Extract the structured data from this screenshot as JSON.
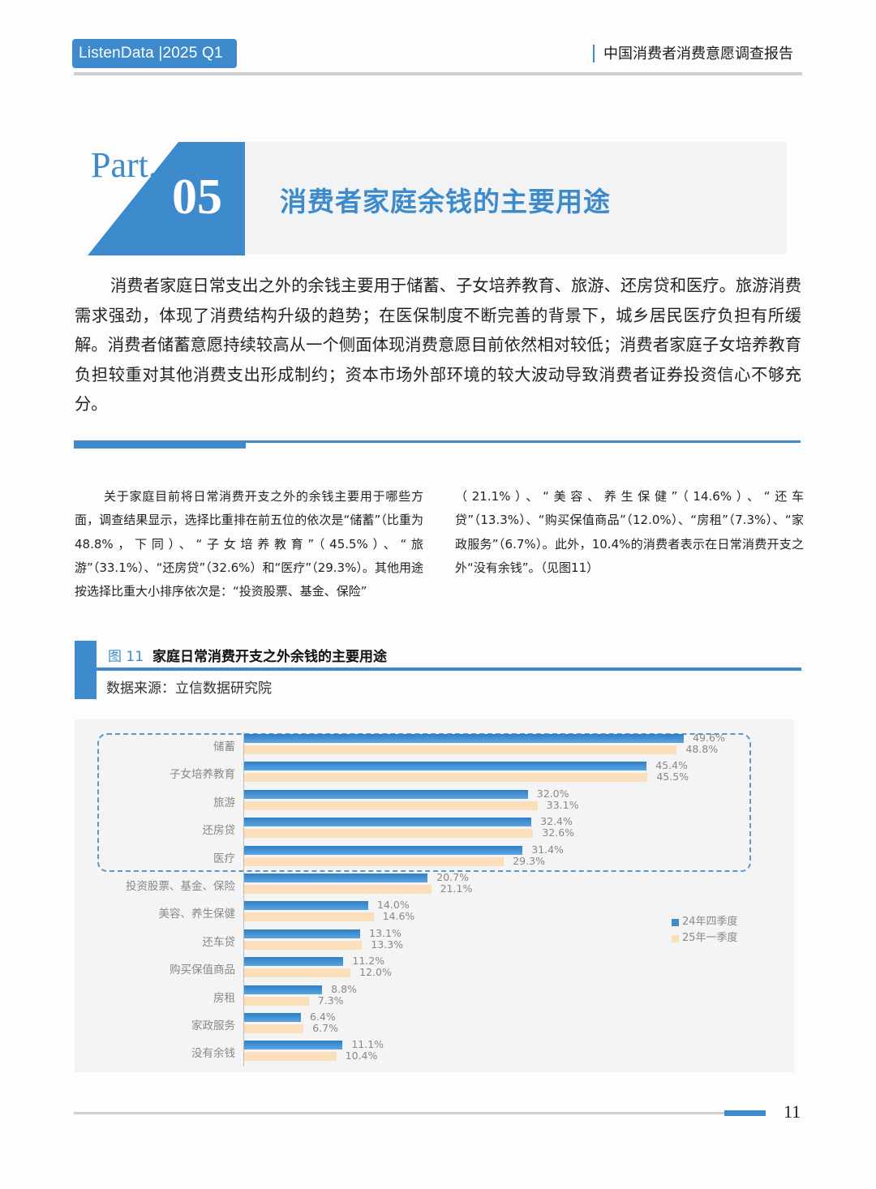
{
  "header": {
    "brand": "ListenData |2025 Q1",
    "report_title": "中国消费者消费意愿调查报告"
  },
  "section": {
    "part_label": "Part.",
    "part_number": "05",
    "title": "消费者家庭余钱的主要用途"
  },
  "intro": "消费者家庭日常支出之外的余钱主要用于储蓄、子女培养教育、旅游、还房贷和医疗。旅游消费需求强劲，体现了消费结构升级的趋势；在医保制度不断完善的背景下，城乡居民医疗负担有所缓解。消费者储蓄意愿持续较高从一个侧面体现消费意愿目前依然相对较低；消费者家庭子女培养教育负担较重对其他消费支出形成制约；资本市场外部环境的较大波动导致消费者证券投资信心不够充分。",
  "body": {
    "left": "关于家庭目前将日常消费开支之外的余钱主要用于哪些方面，调查结果显示，选择比重排在前五位的依次是“储蓄”（比重为48.8%，下同）、“子女培养教育”（45.5%）、“旅游”（33.1%）、“还房贷”（32.6%）和“医疗”（29.3%）。其他用途按选择比重大小排序依次是：“投资股票、基金、保险”",
    "right": "（21.1%）、“美容、养生保健”（14.6%）、“还车贷”（13.3%）、“购买保值商品”（12.0%）、“房租”（7.3%）、“家政服务”（6.7%）。此外，10.4%的消费者表示在日常消费开支之外“没有余钱”。（见图11）"
  },
  "figure": {
    "number": "图 11",
    "title": "家庭日常消费开支之外余钱的主要用途",
    "source": "数据来源：立信数据研究院"
  },
  "chart_data": {
    "type": "bar",
    "orientation": "horizontal",
    "title": "家庭日常消费开支之外余钱的主要用途",
    "xlabel": "",
    "ylabel": "",
    "unit": "%",
    "categories": [
      "储蓄",
      "子女培养教育",
      "旅游",
      "还房贷",
      "医疗",
      "投资股票、基金、保险",
      "美容、养生保健",
      "还车贷",
      "购买保值商品",
      "房租",
      "家政服务",
      "没有余钱"
    ],
    "series": [
      {
        "name": "24年四季度",
        "color": "#3d8bcd",
        "values": [
          49.6,
          45.4,
          32.0,
          32.4,
          31.4,
          20.7,
          14.0,
          13.1,
          11.2,
          8.8,
          6.4,
          11.1
        ]
      },
      {
        "name": "25年一季度",
        "color": "#fbdfbb",
        "values": [
          48.8,
          45.5,
          33.1,
          32.6,
          29.3,
          21.1,
          14.6,
          13.3,
          12.0,
          7.3,
          6.7,
          10.4
        ]
      }
    ],
    "labels_q4": [
      "49.6%",
      "45.4%",
      "32.0%",
      "32.4%",
      "31.4%",
      "20.7%",
      "14.0%",
      "13.1%",
      "11.2%",
      "8.8%",
      "6.4%",
      "11.1%"
    ],
    "labels_q1": [
      "48.8%",
      "45.5%",
      "33.1%",
      "32.6%",
      "29.3%",
      "21.1%",
      "14.6%",
      "13.3%",
      "12.0%",
      "7.3%",
      "6.7%",
      "10.4%"
    ],
    "highlight": "前五项以虚线框标出",
    "grid": false,
    "legend_position": "right"
  },
  "legend": {
    "q4": "24年四季度",
    "q1": "25年一季度"
  },
  "footer": {
    "page_number": "11"
  }
}
